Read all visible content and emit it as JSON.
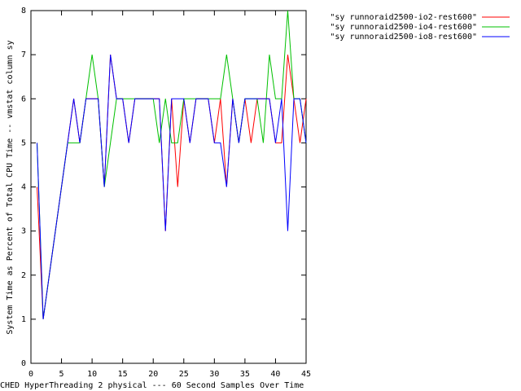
{
  "chart_data": {
    "type": "line",
    "ylabel": "System Time as Percent of Total CPU Time -- vmstat column sy",
    "xlabel": "CHED HyperThreading 2 physical --- 60 Second Samples Over Time",
    "x": [
      1,
      2,
      3,
      4,
      5,
      6,
      7,
      8,
      9,
      10,
      11,
      12,
      13,
      14,
      15,
      16,
      17,
      18,
      19,
      20,
      21,
      22,
      23,
      24,
      25,
      26,
      27,
      28,
      29,
      30,
      31,
      32,
      33,
      34,
      35,
      36,
      37,
      38,
      39,
      40,
      41,
      42,
      43,
      44,
      45
    ],
    "series": [
      {
        "name": "\"sy runnoraid2500-io2-rest600\"",
        "color": "#ff0000",
        "values": [
          4,
          1,
          2,
          3,
          4,
          5,
          6,
          5,
          6,
          6,
          6,
          4,
          7,
          6,
          6,
          5,
          6,
          6,
          6,
          6,
          6,
          3,
          6,
          4,
          6,
          5,
          6,
          6,
          6,
          5,
          6,
          4,
          6,
          5,
          6,
          5,
          6,
          6,
          6,
          5,
          5,
          7,
          6,
          5,
          6
        ]
      },
      {
        "name": "\"sy runnoraid2500-io4-rest600\"",
        "color": "#00c000",
        "values": [
          5,
          1,
          2,
          3,
          4,
          5,
          5,
          5,
          6,
          7,
          6,
          4,
          5,
          6,
          6,
          6,
          6,
          6,
          6,
          6,
          5,
          6,
          5,
          5,
          6,
          6,
          6,
          6,
          6,
          6,
          6,
          7,
          6,
          5,
          6,
          6,
          6,
          5,
          7,
          6,
          6,
          8,
          6,
          6,
          5
        ]
      },
      {
        "name": "\"sy runnoraid2500-io8-rest600\"",
        "color": "#0000ff",
        "values": [
          5,
          1,
          2,
          3,
          4,
          5,
          6,
          5,
          6,
          6,
          6,
          4,
          7,
          6,
          6,
          5,
          6,
          6,
          6,
          6,
          6,
          3,
          6,
          6,
          6,
          5,
          6,
          6,
          6,
          5,
          5,
          4,
          6,
          5,
          6,
          6,
          6,
          6,
          6,
          5,
          6,
          3,
          6,
          6,
          5
        ]
      }
    ],
    "xlim": [
      0,
      45
    ],
    "xticks": [
      0,
      5,
      10,
      15,
      20,
      25,
      30,
      35,
      40,
      45
    ],
    "ylim": [
      0,
      8
    ],
    "yticks": [
      0,
      1,
      2,
      3,
      4,
      5,
      6,
      7,
      8
    ],
    "legend": "top-right"
  }
}
